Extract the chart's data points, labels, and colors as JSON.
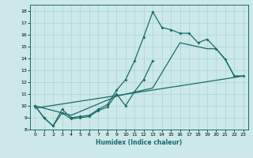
{
  "xlabel": "Humidex (Indice chaleur)",
  "xlim": [
    -0.5,
    23.5
  ],
  "ylim": [
    8,
    18.5
  ],
  "xticks": [
    0,
    1,
    2,
    3,
    4,
    5,
    6,
    7,
    8,
    9,
    10,
    11,
    12,
    13,
    14,
    15,
    16,
    17,
    18,
    19,
    20,
    21,
    22,
    23
  ],
  "yticks": [
    8,
    9,
    10,
    11,
    12,
    13,
    14,
    15,
    16,
    17,
    18
  ],
  "bg_color": "#cce8e8",
  "line_color": "#1a6b6b",
  "grid_color": "#aad4d4",
  "lines": [
    {
      "x": [
        0,
        1,
        2,
        3,
        4,
        5,
        6,
        7,
        8,
        9,
        10,
        11,
        12,
        13,
        14,
        15,
        16,
        17,
        18,
        19,
        20,
        21,
        22,
        23
      ],
      "y": [
        10.0,
        9.0,
        8.3,
        9.7,
        9.0,
        9.1,
        9.2,
        9.7,
        10.1,
        11.3,
        12.2,
        13.8,
        15.8,
        17.9,
        16.6,
        16.4,
        16.1,
        16.1,
        15.3,
        15.6,
        14.8,
        13.9,
        12.5,
        12.5
      ]
    },
    {
      "x": [
        0,
        1,
        2,
        3,
        4,
        5,
        6,
        7,
        8,
        9,
        10,
        11,
        12,
        13
      ],
      "y": [
        10.0,
        9.0,
        8.3,
        9.4,
        8.9,
        9.0,
        9.1,
        9.6,
        9.9,
        11.0,
        10.0,
        11.2,
        12.2,
        13.8
      ]
    },
    {
      "x": [
        0,
        23
      ],
      "y": [
        9.8,
        12.5
      ]
    },
    {
      "x": [
        0,
        4,
        9,
        13,
        16,
        19,
        20,
        21,
        22,
        23
      ],
      "y": [
        10.0,
        9.2,
        10.8,
        11.5,
        15.3,
        14.8,
        14.8,
        13.9,
        12.5,
        12.5
      ]
    }
  ]
}
